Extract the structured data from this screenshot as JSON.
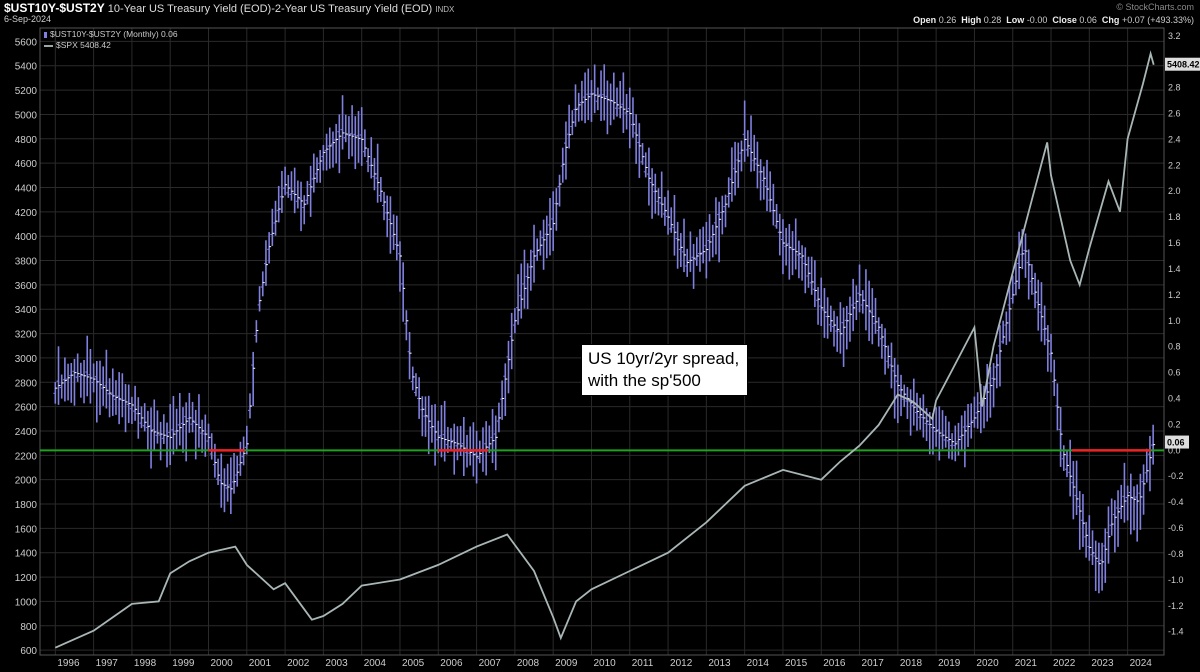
{
  "header": {
    "symbol": "$UST10Y-$UST2Y",
    "description": "10-Year US Treasury Yield (EOD)-2-Year US Treasury Yield (EOD)",
    "index_tag": "INDX",
    "date": "6-Sep-2024",
    "brand": "© StockCharts.com",
    "open_label": "Open",
    "open": "0.26",
    "high_label": "High",
    "high": "0.28",
    "low_label": "Low",
    "low": "-0.00",
    "close_label": "Close",
    "close": "0.06",
    "chg_label": "Chg",
    "chg": "+0.07 (+493.33%)"
  },
  "legend": [
    {
      "label": "$UST10Y-$UST2Y (Monthly) 0.06",
      "color": "#8080e0"
    },
    {
      "label": "$SPX 5408.42",
      "color": "#9aa8a8"
    }
  ],
  "annotation": {
    "line1": "US 10yr/2yr spread,",
    "line2": "with the sp'500"
  },
  "last_value_tags": {
    "spx": "5408.42",
    "spread": "0.06"
  },
  "colors": {
    "spread": "#8080e0",
    "spx": "#a9b6b6",
    "zero_line": "#1fa01f",
    "inversion": "#ee2222",
    "grid": "#2a2a2a"
  },
  "chart_data": {
    "type": "line",
    "x_axis": {
      "ticks": [
        "1996",
        "1997",
        "1998",
        "1999",
        "2000",
        "2001",
        "2002",
        "2003",
        "2004",
        "2005",
        "2006",
        "2007",
        "2008",
        "2009",
        "2010",
        "2011",
        "2012",
        "2013",
        "2014",
        "2015",
        "2016",
        "2017",
        "2018",
        "2019",
        "2020",
        "2021",
        "2022",
        "2023",
        "2024"
      ]
    },
    "left_axis": {
      "ticks": [
        600,
        800,
        1000,
        1200,
        1400,
        1600,
        1800,
        2000,
        2200,
        2400,
        2600,
        2800,
        3000,
        3200,
        3400,
        3600,
        3800,
        4000,
        4200,
        4400,
        4600,
        4800,
        5000,
        5200,
        5400,
        5600
      ],
      "ylim": [
        560,
        5710
      ]
    },
    "right_axis": {
      "ticks": [
        "-1.4",
        "-1.2",
        "-1.0",
        "-0.8",
        "-0.6",
        "-0.4",
        "-0.2",
        "0.0",
        "0.2",
        "0.4",
        "0.6",
        "0.8",
        "1.0",
        "1.2",
        "1.4",
        "1.6",
        "1.8",
        "2.0",
        "2.2",
        "2.4",
        "2.6",
        "2.8",
        "3.0",
        "3.2"
      ],
      "ylim": [
        -1.58,
        3.26
      ]
    },
    "grid": true,
    "series": [
      {
        "name": "$UST10Y-$UST2Y",
        "style": "monthly-ohlc-bars",
        "axis": "right",
        "x": [
          1996.0,
          1996.5,
          1997.0,
          1997.5,
          1998.0,
          1998.5,
          1999.0,
          1999.5,
          2000.0,
          2000.3,
          2000.6,
          2001.0,
          2001.3,
          2001.6,
          2002.0,
          2002.5,
          2003.0,
          2003.5,
          2004.0,
          2004.5,
          2005.0,
          2005.3,
          2005.6,
          2006.0,
          2006.5,
          2007.0,
          2007.5,
          2008.0,
          2008.5,
          2009.0,
          2009.3,
          2009.6,
          2010.0,
          2010.5,
          2011.0,
          2011.5,
          2012.0,
          2012.5,
          2013.0,
          2013.5,
          2014.0,
          2014.5,
          2015.0,
          2015.5,
          2016.0,
          2016.5,
          2017.0,
          2017.5,
          2018.0,
          2018.5,
          2019.0,
          2019.5,
          2020.0,
          2020.5,
          2021.0,
          2021.3,
          2021.6,
          2022.0,
          2022.3,
          2022.6,
          2023.0,
          2023.3,
          2023.6,
          2024.0,
          2024.3,
          2024.68
        ],
        "values": [
          0.48,
          0.6,
          0.55,
          0.42,
          0.35,
          0.15,
          0.1,
          0.25,
          0.1,
          -0.25,
          -0.3,
          0.05,
          1.1,
          1.6,
          2.05,
          1.9,
          2.3,
          2.45,
          2.4,
          2.0,
          1.5,
          0.6,
          0.3,
          0.1,
          0.05,
          -0.05,
          0.1,
          1.0,
          1.5,
          1.75,
          2.3,
          2.65,
          2.75,
          2.7,
          2.6,
          2.1,
          1.8,
          1.45,
          1.55,
          1.9,
          2.4,
          2.1,
          1.6,
          1.5,
          1.1,
          0.9,
          1.2,
          0.95,
          0.5,
          0.3,
          0.15,
          0.05,
          0.25,
          0.55,
          1.2,
          1.58,
          1.2,
          0.75,
          0.0,
          -0.3,
          -0.75,
          -0.9,
          -0.55,
          -0.35,
          -0.4,
          0.06
        ]
      },
      {
        "name": "$SPX",
        "style": "line",
        "axis": "left",
        "x": [
          1996.0,
          1997.0,
          1998.0,
          1998.7,
          1999.0,
          1999.5,
          2000.0,
          2000.7,
          2001.0,
          2001.7,
          2002.0,
          2002.7,
          2003.0,
          2003.5,
          2004.0,
          2005.0,
          2006.0,
          2007.0,
          2007.8,
          2008.5,
          2009.0,
          2009.2,
          2009.6,
          2010.0,
          2011.0,
          2012.0,
          2013.0,
          2014.0,
          2015.0,
          2016.0,
          2016.5,
          2017.0,
          2017.5,
          2018.0,
          2018.4,
          2018.9,
          2019.0,
          2019.5,
          2020.0,
          2020.2,
          2020.5,
          2021.0,
          2021.5,
          2021.9,
          2022.0,
          2022.5,
          2022.75,
          2023.0,
          2023.5,
          2023.8,
          2024.0,
          2024.4,
          2024.6,
          2024.68
        ],
        "values": [
          620,
          760,
          980,
          1000,
          1230,
          1330,
          1400,
          1450,
          1300,
          1100,
          1150,
          850,
          880,
          980,
          1130,
          1180,
          1300,
          1450,
          1550,
          1250,
          870,
          700,
          1000,
          1100,
          1250,
          1400,
          1650,
          1950,
          2080,
          2000,
          2150,
          2280,
          2450,
          2700,
          2640,
          2500,
          2650,
          2950,
          3250,
          2600,
          3100,
          3700,
          4300,
          4770,
          4500,
          3800,
          3600,
          3900,
          4450,
          4200,
          4800,
          5250,
          5500,
          5408.42
        ]
      }
    ],
    "reference_lines": [
      {
        "axis": "right",
        "value": 0.0
      }
    ]
  }
}
